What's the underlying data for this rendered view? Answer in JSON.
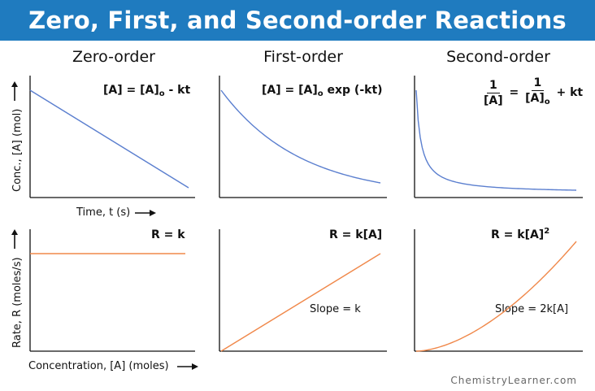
{
  "title": "Zero, First, and Second-order Reactions",
  "columns": [
    "Zero-order",
    "First-order",
    "Second-order"
  ],
  "top_row": {
    "ylabel": "Conc., [A] (mol)",
    "xlabel": "Time, t (s)",
    "equations": {
      "zero": {
        "lhs": "[A] = [A]",
        "sub": "o",
        "rhs": " - kt"
      },
      "first": {
        "lhs": "[A] = [A]",
        "sub": "o",
        "rhs": " exp (-kt)"
      },
      "second": {
        "num1": "1",
        "den1": "[A]",
        "eq": " = ",
        "num2": "1",
        "den2": "[A]",
        "sub": "o",
        "rhs": " + kt"
      }
    }
  },
  "bottom_row": {
    "ylabel": "Rate, R (moles/s)",
    "xlabel": "Concentration, [A] (moles)",
    "equations": {
      "zero": "R = k",
      "first": "R = k[A]",
      "second": {
        "base": "R = k[A]",
        "sup": "2"
      }
    },
    "slopes": {
      "first": "Slope = k",
      "second": "Slope = 2k[A]"
    }
  },
  "colors": {
    "banner": "#1f7bbf",
    "concentration_curve": "#5b7fcf",
    "rate_curve": "#f0884a",
    "axis": "#111111"
  },
  "chart_data": [
    {
      "type": "line",
      "panel": "zero-order-concentration",
      "shape": "linear-decrease",
      "x": [
        0,
        1
      ],
      "y": [
        0.88,
        0.08
      ]
    },
    {
      "type": "line",
      "panel": "first-order-concentration",
      "shape": "exponential-decay",
      "x": [
        0,
        1
      ],
      "y": [
        0.88,
        0.12
      ]
    },
    {
      "type": "line",
      "panel": "second-order-concentration",
      "shape": "reciprocal-decay",
      "x": [
        0,
        1
      ],
      "y": [
        0.88,
        0.06
      ]
    },
    {
      "type": "line",
      "panel": "zero-order-rate",
      "shape": "constant",
      "x": [
        0,
        1
      ],
      "y": [
        0.8,
        0.8
      ]
    },
    {
      "type": "line",
      "panel": "first-order-rate",
      "shape": "linear-increase",
      "x": [
        0,
        1
      ],
      "y": [
        0.0,
        0.8
      ]
    },
    {
      "type": "line",
      "panel": "second-order-rate",
      "shape": "quadratic-increase",
      "x": [
        0,
        1
      ],
      "y": [
        0.0,
        0.9
      ]
    }
  ],
  "footer": "ChemistryLearner.com"
}
